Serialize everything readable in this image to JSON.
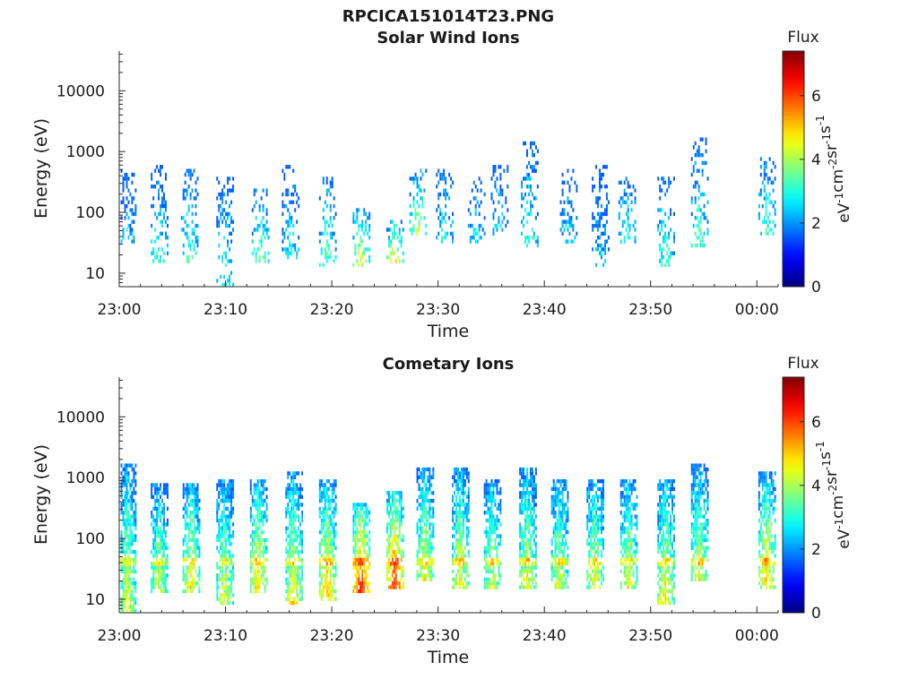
{
  "figure": {
    "title": "RPCICA151014T23.PNG"
  },
  "colorbar": {
    "title": "Flux",
    "label_parts": [
      "eV",
      "-1",
      "cm",
      "-2",
      "sr",
      "-1",
      "s",
      "-1"
    ],
    "range": [
      0,
      7.4
    ],
    "ticks": [
      "0",
      "2",
      "4",
      "6"
    ]
  },
  "colors": {
    "colormap": "jet",
    "axis": "#262626"
  },
  "chart_data": [
    {
      "type": "heatmap",
      "title": "Solar Wind Ions",
      "xlabel": "Time",
      "ylabel": "Energy (eV)",
      "y_scale": "log",
      "ylim": [
        6,
        45000
      ],
      "xlim": [
        "23:00",
        "00:02"
      ],
      "x_ticks": [
        "23:00",
        "23:10",
        "23:20",
        "23:30",
        "23:40",
        "23:50",
        "00:00"
      ],
      "y_ticks": [
        "10",
        "100",
        "1000",
        "10000"
      ],
      "grid": false,
      "value_range": [
        0,
        7.4
      ],
      "data_gaps": [
        [
          "23:58:00",
          "23:59:45"
        ]
      ],
      "bursts": [
        {
          "t": "23:00:40",
          "e_low": 30,
          "e_high": 500,
          "peak": 2.6
        },
        {
          "t": "23:03:40",
          "e_low": 12,
          "e_high": 600,
          "peak": 3.4
        },
        {
          "t": "23:06:30",
          "e_low": 15,
          "e_high": 500,
          "peak": 3.6
        },
        {
          "t": "23:09:50",
          "e_low": 6,
          "e_high": 400,
          "peak": 3.3
        },
        {
          "t": "23:13:10",
          "e_low": 14,
          "e_high": 250,
          "peak": 3.8
        },
        {
          "t": "23:16:00",
          "e_low": 18,
          "e_high": 600,
          "peak": 3.0
        },
        {
          "t": "23:19:30",
          "e_low": 12,
          "e_high": 400,
          "peak": 3.7
        },
        {
          "t": "23:22:40",
          "e_low": 12,
          "e_high": 120,
          "peak": 4.8
        },
        {
          "t": "23:25:50",
          "e_low": 14,
          "e_high": 80,
          "peak": 4.9
        },
        {
          "t": "23:28:00",
          "e_low": 40,
          "e_high": 500,
          "peak": 4.4
        },
        {
          "t": "23:30:30",
          "e_low": 30,
          "e_high": 500,
          "peak": 3.2
        },
        {
          "t": "23:33:30",
          "e_low": 30,
          "e_high": 400,
          "peak": 3.0
        },
        {
          "t": "23:35:40",
          "e_low": 40,
          "e_high": 600,
          "peak": 2.8
        },
        {
          "t": "23:38:30",
          "e_low": 25,
          "e_high": 1500,
          "peak": 3.4
        },
        {
          "t": "23:42:10",
          "e_low": 30,
          "e_high": 500,
          "peak": 2.8
        },
        {
          "t": "23:45:10",
          "e_low": 12,
          "e_high": 600,
          "peak": 2.6
        },
        {
          "t": "23:47:40",
          "e_low": 30,
          "e_high": 400,
          "peak": 3.4
        },
        {
          "t": "23:51:20",
          "e_low": 12,
          "e_high": 400,
          "peak": 3.6
        },
        {
          "t": "23:54:30",
          "e_low": 25,
          "e_high": 1700,
          "peak": 3.4
        },
        {
          "t": "00:00:50",
          "e_low": 40,
          "e_high": 800,
          "peak": 3.6
        }
      ]
    },
    {
      "type": "heatmap",
      "title": "Cometary Ions",
      "xlabel": "Time",
      "ylabel": "Energy (eV)",
      "y_scale": "log",
      "ylim": [
        6,
        45000
      ],
      "xlim": [
        "23:00",
        "00:02"
      ],
      "x_ticks": [
        "23:00",
        "23:10",
        "23:20",
        "23:30",
        "23:40",
        "23:50",
        "00:00"
      ],
      "y_ticks": [
        "10",
        "100",
        "1000",
        "10000"
      ],
      "grid": false,
      "value_range": [
        0,
        7.4
      ],
      "data_gaps": [
        [
          "23:58:00",
          "23:59:45"
        ]
      ],
      "bursts": [
        {
          "t": "23:00:40",
          "e_low": 6,
          "e_high": 1700,
          "peak": 4.6
        },
        {
          "t": "23:03:40",
          "e_low": 12,
          "e_high": 800,
          "peak": 4.5
        },
        {
          "t": "23:06:40",
          "e_low": 12,
          "e_high": 800,
          "peak": 5.0
        },
        {
          "t": "23:09:50",
          "e_low": 8,
          "e_high": 1000,
          "peak": 4.6
        },
        {
          "t": "23:13:00",
          "e_low": 12,
          "e_high": 1000,
          "peak": 5.2
        },
        {
          "t": "23:16:20",
          "e_low": 8,
          "e_high": 1200,
          "peak": 5.0
        },
        {
          "t": "23:19:30",
          "e_low": 10,
          "e_high": 900,
          "peak": 5.4
        },
        {
          "t": "23:22:40",
          "e_low": 12,
          "e_high": 400,
          "peak": 6.6
        },
        {
          "t": "23:25:50",
          "e_low": 14,
          "e_high": 600,
          "peak": 6.4
        },
        {
          "t": "23:28:40",
          "e_low": 20,
          "e_high": 1500,
          "peak": 4.8
        },
        {
          "t": "23:32:00",
          "e_low": 15,
          "e_high": 1500,
          "peak": 4.8
        },
        {
          "t": "23:35:00",
          "e_low": 14,
          "e_high": 900,
          "peak": 4.6
        },
        {
          "t": "23:38:20",
          "e_low": 14,
          "e_high": 1400,
          "peak": 4.8
        },
        {
          "t": "23:41:20",
          "e_low": 14,
          "e_high": 1000,
          "peak": 4.6
        },
        {
          "t": "23:44:40",
          "e_low": 14,
          "e_high": 1000,
          "peak": 4.8
        },
        {
          "t": "23:47:50",
          "e_low": 14,
          "e_high": 900,
          "peak": 4.8
        },
        {
          "t": "23:51:20",
          "e_low": 8,
          "e_high": 1000,
          "peak": 5.0
        },
        {
          "t": "23:54:30",
          "e_low": 20,
          "e_high": 1700,
          "peak": 4.6
        },
        {
          "t": "00:00:50",
          "e_low": 14,
          "e_high": 1200,
          "peak": 5.2
        }
      ]
    }
  ]
}
